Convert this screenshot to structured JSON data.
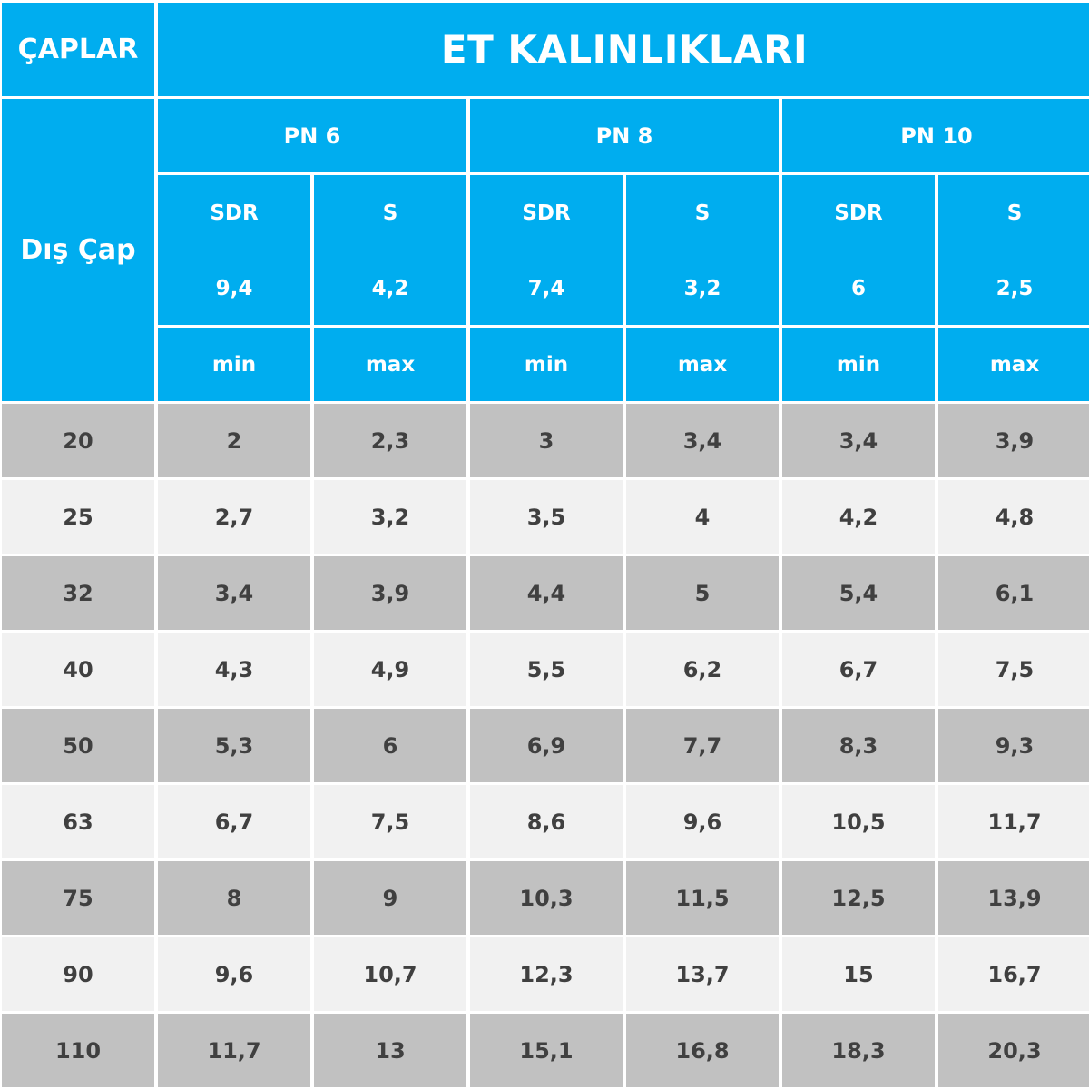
{
  "header": {
    "corner_label": "ÇAPLAR",
    "title": "ET KALINLIKLARI",
    "side_label": "Dış Çap",
    "groups": [
      {
        "label": "PN 6",
        "sdr_label": "SDR",
        "s_label": "S",
        "sdr_value": "9,4",
        "s_value": "4,2",
        "min_label": "min",
        "max_label": "max"
      },
      {
        "label": "PN 8",
        "sdr_label": "SDR",
        "s_label": "S",
        "sdr_value": "7,4",
        "s_value": "3,2",
        "min_label": "min",
        "max_label": "max"
      },
      {
        "label": "PN 10",
        "sdr_label": "SDR",
        "s_label": "S",
        "sdr_value": "6",
        "s_value": "2,5",
        "min_label": "min",
        "max_label": "max"
      }
    ]
  },
  "rows": [
    {
      "diameter": "20",
      "values": [
        "2",
        "2,3",
        "3",
        "3,4",
        "3,4",
        "3,9"
      ]
    },
    {
      "diameter": "25",
      "values": [
        "2,7",
        "3,2",
        "3,5",
        "4",
        "4,2",
        "4,8"
      ]
    },
    {
      "diameter": "32",
      "values": [
        "3,4",
        "3,9",
        "4,4",
        "5",
        "5,4",
        "6,1"
      ]
    },
    {
      "diameter": "40",
      "values": [
        "4,3",
        "4,9",
        "5,5",
        "6,2",
        "6,7",
        "7,5"
      ]
    },
    {
      "diameter": "50",
      "values": [
        "5,3",
        "6",
        "6,9",
        "7,7",
        "8,3",
        "9,3"
      ]
    },
    {
      "diameter": "63",
      "values": [
        "6,7",
        "7,5",
        "8,6",
        "9,6",
        "10,5",
        "11,7"
      ]
    },
    {
      "diameter": "75",
      "values": [
        "8",
        "9",
        "10,3",
        "11,5",
        "12,5",
        "13,9"
      ]
    },
    {
      "diameter": "90",
      "values": [
        "9,6",
        "10,7",
        "12,3",
        "13,7",
        "15",
        "16,7"
      ]
    },
    {
      "diameter": "110",
      "values": [
        "11,7",
        "13",
        "15,1",
        "16,8",
        "18,3",
        "20,3"
      ]
    }
  ],
  "colors": {
    "header_blue": "#00adef",
    "row_dark": "#c1c1c1",
    "row_light": "#f1f1f1",
    "text_dark": "#404040",
    "text_light": "#ffffff"
  }
}
